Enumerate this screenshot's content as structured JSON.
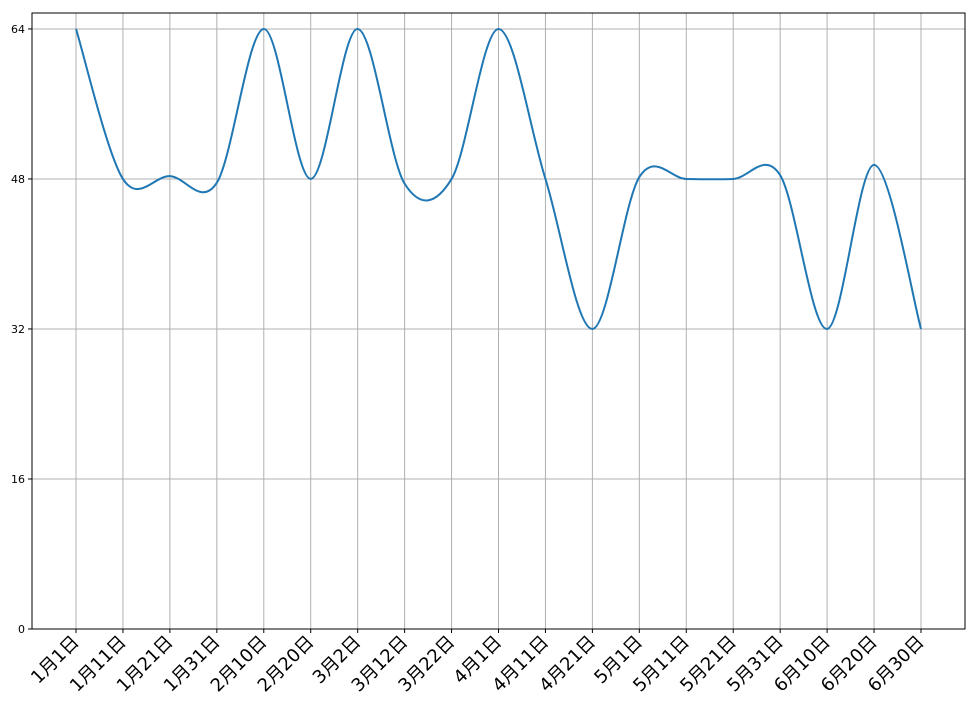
{
  "chart_data": {
    "type": "line",
    "categories": [
      "1月1日",
      "1月11日",
      "1月21日",
      "1月31日",
      "2月10日",
      "2月20日",
      "3月2日",
      "3月12日",
      "3月22日",
      "4月1日",
      "4月11日",
      "4月21日",
      "5月1日",
      "5月11日",
      "5月21日",
      "5月31日",
      "6月10日",
      "6月20日",
      "6月30日"
    ],
    "series": [
      {
        "color": "#1f77b4",
        "values": [
          64,
          48,
          48.3,
          47.6,
          64,
          48,
          64,
          47.5,
          48,
          64,
          48,
          32,
          48.2,
          48,
          48,
          48.4,
          32,
          49.5,
          32
        ]
      }
    ],
    "ylim": [
      0,
      65.7
    ],
    "yticks": [
      0,
      16,
      32,
      48,
      64
    ],
    "grid": true
  }
}
